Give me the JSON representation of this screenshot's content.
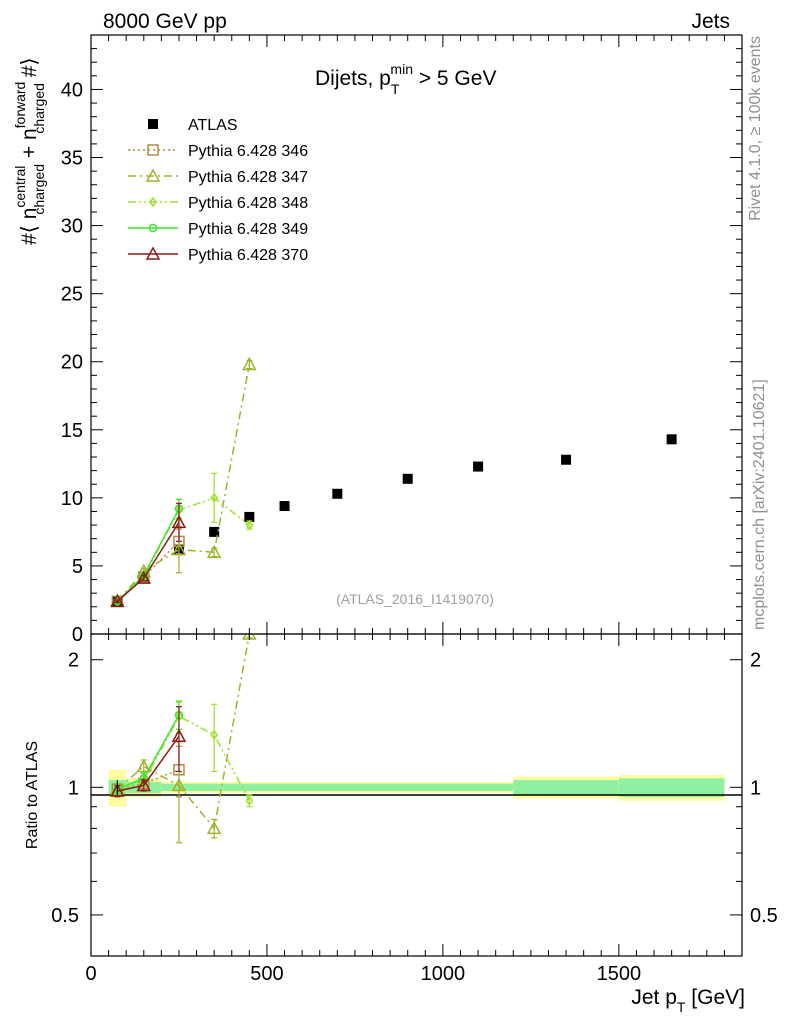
{
  "header": {
    "left": "8000 GeV pp",
    "right": "Jets"
  },
  "side_labels": {
    "rivet": "Rivet 4.1.0, ≥ 100k events",
    "mcplots": "mcplots.cern.ch [arXiv:2401.10621]"
  },
  "colors": {
    "atlas": "#000000",
    "p346": "#b58a48",
    "p347": "#a0b22a",
    "p348": "#9ee22e",
    "p349": "#3ce62e",
    "p370": "#8b1a1a",
    "band_inner": "#8ff09f",
    "band_outer": "#fdfca0"
  },
  "chart_data": [
    {
      "type": "scatter",
      "panel": "main",
      "title": "Dijets, p_T^min > 5 GeV",
      "title_parts": {
        "main": "Dijets, p",
        "sub": "T",
        "sup": "min",
        "tail": " > 5 GeV"
      },
      "ylabel": "#⟨ n_charged^central + n_charged^forward #⟩",
      "ylabel_parts": {
        "pre": "#⟨ n",
        "sup1": "central",
        "sub1": "charged",
        "mid": " + n",
        "sup2": "forward",
        "sub2": "charged",
        "post": " #⟩"
      },
      "xlim": [
        0,
        1850
      ],
      "ylim": [
        0,
        44
      ],
      "yticks": [
        0,
        5,
        10,
        15,
        20,
        25,
        30,
        35,
        40
      ],
      "ytick_labels": [
        "0",
        "5",
        "10",
        "15",
        "20",
        "25",
        "30",
        "35",
        "40"
      ],
      "watermark": "(ATLAS_2016_I1419070)",
      "legend_position": "top-left",
      "series": [
        {
          "name": "ATLAS",
          "key": "atlas",
          "marker": "square",
          "line": "none",
          "x": [
            75,
            150,
            250,
            350,
            450,
            550,
            700,
            900,
            1100,
            1350,
            1650
          ],
          "y": [
            2.4,
            4.1,
            6.2,
            7.5,
            8.6,
            9.4,
            10.3,
            11.4,
            12.3,
            12.8,
            14.3
          ]
        },
        {
          "name": "Pythia 6.428 346",
          "key": "p346",
          "marker": "open-square",
          "line": "dotted",
          "x": [
            75,
            150,
            250
          ],
          "y": [
            2.4,
            4.2,
            6.8
          ],
          "yerr": [
            0.1,
            0.2,
            0.9
          ]
        },
        {
          "name": "Pythia 6.428 347",
          "key": "p347",
          "marker": "open-triangle",
          "line": "dashdot",
          "x": [
            75,
            150,
            250,
            350,
            450
          ],
          "y": [
            2.4,
            4.6,
            6.2,
            6.0,
            19.8
          ],
          "yerr": [
            0.1,
            0.2,
            1.7,
            0.3,
            0.3
          ]
        },
        {
          "name": "Pythia 6.428 348",
          "key": "p348",
          "marker": "open-diamond",
          "line": "dashdotdot",
          "x": [
            75,
            150,
            250,
            350,
            450
          ],
          "y": [
            2.4,
            4.2,
            9.1,
            10.0,
            8.0
          ],
          "yerr": [
            0.1,
            0.2,
            0.8,
            1.8,
            0.3
          ]
        },
        {
          "name": "Pythia 6.428 349",
          "key": "p349",
          "marker": "open-circle",
          "line": "solid",
          "x": [
            75,
            150,
            250
          ],
          "y": [
            2.4,
            4.3,
            9.2
          ],
          "yerr": [
            0.1,
            0.2,
            0.7
          ]
        },
        {
          "name": "Pythia 6.428 370",
          "key": "p370",
          "marker": "open-triangle",
          "line": "solid",
          "x": [
            75,
            150,
            250
          ],
          "y": [
            2.4,
            4.1,
            8.2
          ],
          "yerr": [
            0.1,
            0.2,
            1.4
          ]
        }
      ]
    },
    {
      "type": "scatter",
      "panel": "ratio",
      "ylabel": "Ratio to ATLAS",
      "xlabel": "Jet p_T [GeV]",
      "xlabel_parts": {
        "main": "Jet p",
        "sub": "T",
        "tail": " [GeV]"
      },
      "xlim": [
        0,
        1850
      ],
      "ylim": [
        0.4,
        2.3
      ],
      "yscale": "log",
      "yticks": [
        0.5,
        1,
        2
      ],
      "ytick_labels": [
        "0.5",
        "1",
        "2"
      ],
      "xticks": [
        0,
        500,
        1000,
        1500
      ],
      "xtick_labels": [
        "0",
        "500",
        "1000",
        "1500"
      ],
      "bands": [
        {
          "x0": 50,
          "x1": 100,
          "inner": 0.04,
          "outer": 0.1
        },
        {
          "x0": 100,
          "x1": 200,
          "inner": 0.03,
          "outer": 0.05
        },
        {
          "x0": 200,
          "x1": 300,
          "inner": 0.02,
          "outer": 0.03
        },
        {
          "x0": 300,
          "x1": 1200,
          "inner": 0.02,
          "outer": 0.03
        },
        {
          "x0": 1200,
          "x1": 1500,
          "inner": 0.04,
          "outer": 0.06
        },
        {
          "x0": 1500,
          "x1": 1800,
          "inner": 0.05,
          "outer": 0.07
        }
      ],
      "series": [
        {
          "name": "Pythia 6.428 346",
          "key": "p346",
          "marker": "open-square",
          "line": "dotted",
          "x": [
            75,
            150,
            250
          ],
          "y": [
            0.99,
            1.02,
            1.1
          ],
          "yerr": [
            0.03,
            0.03,
            0.15
          ]
        },
        {
          "name": "Pythia 6.428 347",
          "key": "p347",
          "marker": "open-triangle",
          "line": "dashdot",
          "x": [
            75,
            150,
            250,
            350,
            450
          ],
          "y": [
            0.99,
            1.12,
            1.01,
            0.8,
            2.3
          ],
          "yerr": [
            0.03,
            0.04,
            0.27,
            0.04,
            0.04
          ]
        },
        {
          "name": "Pythia 6.428 348",
          "key": "p348",
          "marker": "open-diamond",
          "line": "dashdotdot",
          "x": [
            75,
            150,
            250,
            350,
            450
          ],
          "y": [
            0.99,
            1.03,
            1.47,
            1.33,
            0.93
          ],
          "yerr": [
            0.03,
            0.03,
            0.13,
            0.24,
            0.03
          ]
        },
        {
          "name": "Pythia 6.428 349",
          "key": "p349",
          "marker": "open-circle",
          "line": "solid",
          "x": [
            75,
            150,
            250
          ],
          "y": [
            0.99,
            1.05,
            1.48
          ],
          "yerr": [
            0.03,
            0.03,
            0.11
          ]
        },
        {
          "name": "Pythia 6.428 370",
          "key": "p370",
          "marker": "open-triangle",
          "line": "solid",
          "x": [
            75,
            150,
            250
          ],
          "y": [
            0.98,
            1.01,
            1.32
          ],
          "yerr": [
            0.03,
            0.03,
            0.23
          ]
        }
      ]
    }
  ]
}
